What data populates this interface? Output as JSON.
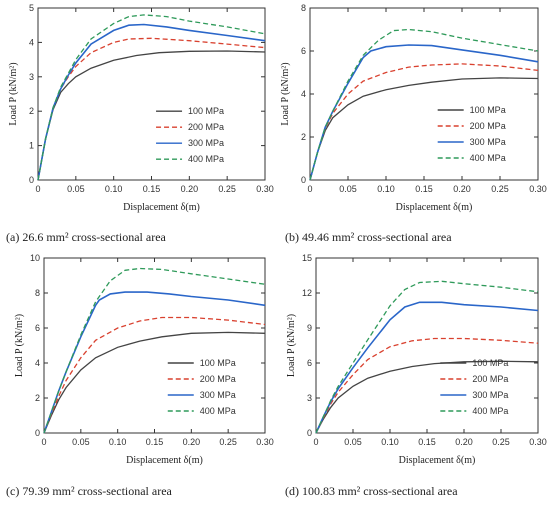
{
  "captions": [
    "(a) 26.6 mm² cross-sectional area",
    "(b) 49.46 mm² cross-sectional area",
    "(c) 79.39 mm² cross-sectional area",
    "(d) 100.83 mm² cross-sectional area"
  ],
  "colors": {
    "100 MPa": "#444444",
    "200 MPa": "#d9412f",
    "300 MPa": "#2a66c9",
    "400 MPa": "#2f9a5a"
  },
  "chart_data": [
    {
      "type": "line",
      "xlabel": "Displacement δ(m)",
      "ylabel": "Load P (kN/m²)",
      "xlim": [
        0,
        0.3
      ],
      "ylim": [
        0,
        5
      ],
      "xticks": [
        "0",
        "0.05",
        "0.10",
        "0.15",
        "0.20",
        "0.25",
        "0.30"
      ],
      "yticks": [
        "0",
        "1",
        "2",
        "3",
        "4",
        "5"
      ],
      "legend_position": "center-right",
      "series": [
        {
          "name": "100 MPa",
          "style": "solid",
          "x": [
            0,
            0.01,
            0.02,
            0.03,
            0.04,
            0.05,
            0.07,
            0.1,
            0.13,
            0.16,
            0.2,
            0.25,
            0.3
          ],
          "y": [
            0,
            1.2,
            2.05,
            2.55,
            2.8,
            3.0,
            3.25,
            3.48,
            3.62,
            3.7,
            3.74,
            3.75,
            3.72
          ]
        },
        {
          "name": "200 MPa",
          "style": "dashed",
          "x": [
            0,
            0.01,
            0.02,
            0.03,
            0.04,
            0.05,
            0.07,
            0.1,
            0.12,
            0.15,
            0.2,
            0.25,
            0.3
          ],
          "y": [
            0,
            1.2,
            2.1,
            2.65,
            3.0,
            3.3,
            3.7,
            4.0,
            4.1,
            4.12,
            4.05,
            3.95,
            3.85
          ]
        },
        {
          "name": "300 MPa",
          "style": "solid",
          "x": [
            0,
            0.01,
            0.02,
            0.03,
            0.04,
            0.05,
            0.07,
            0.1,
            0.12,
            0.14,
            0.17,
            0.2,
            0.25,
            0.3
          ],
          "y": [
            0,
            1.2,
            2.1,
            2.65,
            3.05,
            3.4,
            3.95,
            4.35,
            4.5,
            4.52,
            4.45,
            4.35,
            4.2,
            4.05
          ]
        },
        {
          "name": "400 MPa",
          "style": "dashed",
          "x": [
            0,
            0.01,
            0.02,
            0.03,
            0.04,
            0.05,
            0.07,
            0.1,
            0.12,
            0.14,
            0.17,
            0.2,
            0.25,
            0.3
          ],
          "y": [
            0,
            1.2,
            2.1,
            2.7,
            3.1,
            3.5,
            4.1,
            4.55,
            4.75,
            4.8,
            4.75,
            4.62,
            4.45,
            4.25
          ]
        }
      ]
    },
    {
      "type": "line",
      "xlabel": "Displacement δ(m)",
      "ylabel": "Load P (kN/m²)",
      "xlim": [
        0,
        0.3
      ],
      "ylim": [
        0,
        8
      ],
      "xticks": [
        "0",
        "0.05",
        "0.10",
        "0.15",
        "0.20",
        "0.25",
        "0.30"
      ],
      "yticks": [
        "0",
        "2",
        "4",
        "6",
        "8"
      ],
      "legend_position": "bottom-right",
      "series": [
        {
          "name": "100 MPa",
          "style": "solid",
          "x": [
            0,
            0.01,
            0.02,
            0.03,
            0.05,
            0.07,
            0.1,
            0.13,
            0.16,
            0.2,
            0.25,
            0.3
          ],
          "y": [
            0,
            1.3,
            2.3,
            2.9,
            3.5,
            3.9,
            4.2,
            4.4,
            4.55,
            4.7,
            4.75,
            4.72
          ]
        },
        {
          "name": "200 MPa",
          "style": "dashed",
          "x": [
            0,
            0.01,
            0.02,
            0.03,
            0.05,
            0.07,
            0.1,
            0.13,
            0.16,
            0.2,
            0.25,
            0.3
          ],
          "y": [
            0,
            1.3,
            2.4,
            3.1,
            4.0,
            4.6,
            5.0,
            5.25,
            5.35,
            5.4,
            5.3,
            5.1
          ]
        },
        {
          "name": "300 MPa",
          "style": "solid",
          "x": [
            0,
            0.01,
            0.02,
            0.03,
            0.05,
            0.07,
            0.08,
            0.1,
            0.13,
            0.16,
            0.2,
            0.25,
            0.3
          ],
          "y": [
            0,
            1.3,
            2.45,
            3.2,
            4.5,
            5.7,
            6.0,
            6.2,
            6.28,
            6.25,
            6.05,
            5.8,
            5.5
          ]
        },
        {
          "name": "400 MPa",
          "style": "dashed",
          "x": [
            0,
            0.01,
            0.02,
            0.03,
            0.05,
            0.07,
            0.09,
            0.11,
            0.13,
            0.16,
            0.2,
            0.25,
            0.3
          ],
          "y": [
            0,
            1.3,
            2.45,
            3.2,
            4.6,
            5.8,
            6.5,
            6.95,
            7.0,
            6.9,
            6.6,
            6.3,
            6.0
          ]
        }
      ]
    },
    {
      "type": "line",
      "xlabel": "Displacement δ(m)",
      "ylabel": "Load P (kN/m²)",
      "xlim": [
        0,
        0.3
      ],
      "ylim": [
        0,
        10
      ],
      "xticks": [
        "0",
        "0.05",
        "0.10",
        "0.15",
        "0.20",
        "0.25",
        "0.30"
      ],
      "yticks": [
        "0",
        "2",
        "4",
        "6",
        "8",
        "10"
      ],
      "legend_position": "bottom-right",
      "series": [
        {
          "name": "100 MPa",
          "style": "solid",
          "x": [
            0,
            0.01,
            0.02,
            0.03,
            0.05,
            0.07,
            0.1,
            0.13,
            0.16,
            0.2,
            0.25,
            0.3
          ],
          "y": [
            0,
            1.0,
            1.9,
            2.6,
            3.6,
            4.3,
            4.9,
            5.25,
            5.5,
            5.7,
            5.75,
            5.7
          ]
        },
        {
          "name": "200 MPa",
          "style": "dashed",
          "x": [
            0,
            0.01,
            0.02,
            0.03,
            0.05,
            0.07,
            0.1,
            0.13,
            0.16,
            0.2,
            0.25,
            0.3
          ],
          "y": [
            0,
            1.1,
            2.1,
            3.0,
            4.3,
            5.3,
            6.0,
            6.4,
            6.6,
            6.6,
            6.45,
            6.2
          ]
        },
        {
          "name": "300 MPa",
          "style": "solid",
          "x": [
            0,
            0.01,
            0.02,
            0.03,
            0.05,
            0.07,
            0.075,
            0.09,
            0.11,
            0.14,
            0.17,
            0.2,
            0.25,
            0.3
          ],
          "y": [
            0,
            1.2,
            2.4,
            3.5,
            5.5,
            7.3,
            7.6,
            7.95,
            8.05,
            8.05,
            7.95,
            7.8,
            7.6,
            7.3
          ]
        },
        {
          "name": "400 MPa",
          "style": "dashed",
          "x": [
            0,
            0.01,
            0.02,
            0.03,
            0.05,
            0.07,
            0.09,
            0.11,
            0.13,
            0.16,
            0.2,
            0.25,
            0.3
          ],
          "y": [
            0,
            1.2,
            2.4,
            3.5,
            5.6,
            7.5,
            8.7,
            9.3,
            9.4,
            9.35,
            9.1,
            8.8,
            8.5
          ]
        }
      ]
    },
    {
      "type": "line",
      "xlabel": "Displacement δ(m)",
      "ylabel": "Load P (kN/m²)",
      "xlim": [
        0,
        0.3
      ],
      "ylim": [
        0,
        15
      ],
      "xticks": [
        "0",
        "0.05",
        "0.10",
        "0.15",
        "0.20",
        "0.25",
        "0.30"
      ],
      "yticks": [
        "0",
        "3",
        "6",
        "9",
        "12",
        "15"
      ],
      "legend_position": "bottom-right",
      "series": [
        {
          "name": "100 MPa",
          "style": "solid",
          "x": [
            0,
            0.01,
            0.02,
            0.03,
            0.05,
            0.07,
            0.1,
            0.13,
            0.16,
            0.2,
            0.25,
            0.3
          ],
          "y": [
            0,
            1.2,
            2.2,
            3.0,
            4.0,
            4.7,
            5.3,
            5.7,
            5.95,
            6.1,
            6.15,
            6.1
          ]
        },
        {
          "name": "200 MPa",
          "style": "dashed",
          "x": [
            0,
            0.01,
            0.02,
            0.03,
            0.05,
            0.07,
            0.1,
            0.13,
            0.16,
            0.2,
            0.25,
            0.3
          ],
          "y": [
            0,
            1.3,
            2.5,
            3.5,
            5.0,
            6.3,
            7.4,
            7.9,
            8.1,
            8.1,
            7.95,
            7.7
          ]
        },
        {
          "name": "300 MPa",
          "style": "solid",
          "x": [
            0,
            0.01,
            0.02,
            0.03,
            0.05,
            0.07,
            0.1,
            0.12,
            0.14,
            0.17,
            0.2,
            0.25,
            0.3
          ],
          "y": [
            0,
            1.4,
            2.7,
            3.8,
            5.6,
            7.3,
            9.7,
            10.8,
            11.2,
            11.2,
            11.0,
            10.8,
            10.5
          ]
        },
        {
          "name": "400 MPa",
          "style": "dashed",
          "x": [
            0,
            0.01,
            0.02,
            0.03,
            0.05,
            0.07,
            0.1,
            0.12,
            0.14,
            0.17,
            0.2,
            0.25,
            0.3
          ],
          "y": [
            0,
            1.4,
            2.8,
            4.0,
            6.0,
            8.0,
            10.9,
            12.3,
            12.9,
            13.0,
            12.8,
            12.5,
            12.1
          ]
        }
      ]
    }
  ]
}
